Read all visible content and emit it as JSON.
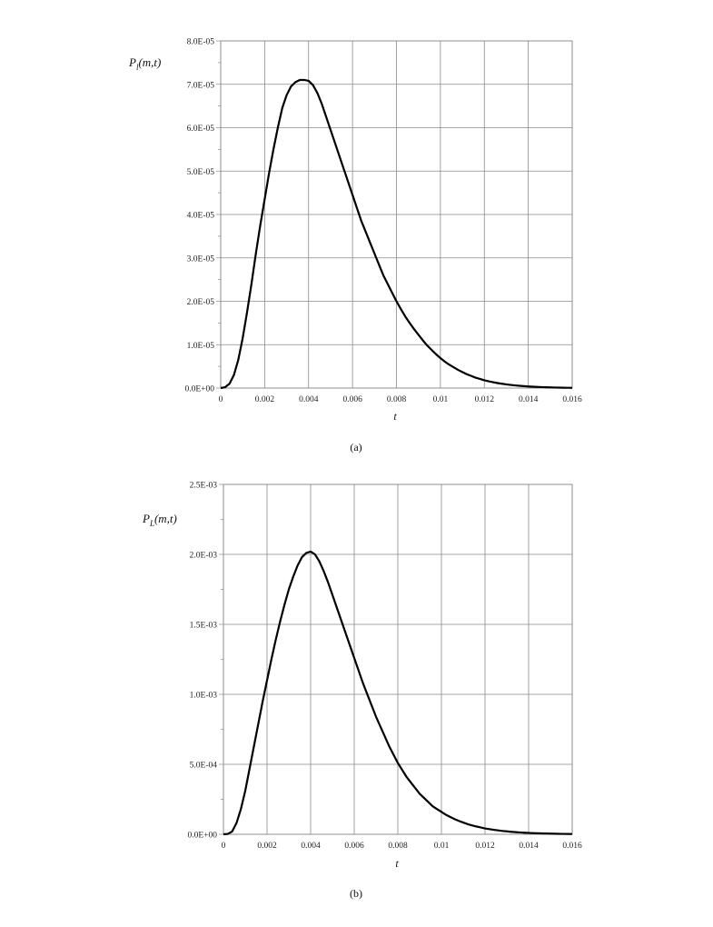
{
  "chart_data": [
    {
      "type": "line",
      "panel_label": "(a)",
      "ylabel_main": "P",
      "ylabel_sub": "l",
      "ylabel_args": "(m,t)",
      "xlabel": "t",
      "xlim": [
        0,
        0.016
      ],
      "ylim": [
        0,
        8e-05
      ],
      "grid": true,
      "x_ticks": [
        "0",
        "0.002",
        "0.004",
        "0.006",
        "0.008",
        "0.01",
        "0.012",
        "0.014",
        "0.016"
      ],
      "y_ticks": [
        "0.0E+00",
        "1.0E-05",
        "2.0E-05",
        "3.0E-05",
        "4.0E-05",
        "5.0E-05",
        "6.0E-05",
        "7.0E-05",
        "8.0E-05"
      ],
      "series": [
        {
          "x": [
            0,
            0.0002,
            0.0004,
            0.0006,
            0.0008,
            0.001,
            0.0012,
            0.0014,
            0.0016,
            0.0018,
            0.002,
            0.0022,
            0.0024,
            0.0026,
            0.0028,
            0.003,
            0.0032,
            0.0034,
            0.0036,
            0.0038,
            0.004,
            0.0042,
            0.0044,
            0.0046,
            0.0048,
            0.005,
            0.0052,
            0.0054,
            0.0056,
            0.0058,
            0.006,
            0.0062,
            0.0064,
            0.0066,
            0.0068,
            0.007,
            0.0072,
            0.0074,
            0.0076,
            0.0078,
            0.008,
            0.0082,
            0.0084,
            0.0086,
            0.0088,
            0.009,
            0.0092,
            0.0094,
            0.0096,
            0.0098,
            0.01,
            0.0102,
            0.0104,
            0.0106,
            0.0108,
            0.011,
            0.0112,
            0.0114,
            0.0116,
            0.0118,
            0.012,
            0.0122,
            0.0124,
            0.0126,
            0.0128,
            0.013,
            0.0132,
            0.0134,
            0.0136,
            0.0138,
            0.014,
            0.0142,
            0.0144,
            0.0146,
            0.0148,
            0.015,
            0.0152,
            0.0154,
            0.0156,
            0.0158,
            0.016
          ],
          "y": [
            0,
            2e-07,
            1e-06,
            3e-06,
            6.5e-06,
            1.15e-05,
            1.75e-05,
            2.4e-05,
            3.1e-05,
            3.75e-05,
            4.35e-05,
            4.95e-05,
            5.5e-05,
            6e-05,
            6.45e-05,
            6.75e-05,
            6.95e-05,
            7.05e-05,
            7.1e-05,
            7.1e-05,
            7.08e-05,
            6.98e-05,
            6.8e-05,
            6.55e-05,
            6.25e-05,
            5.95e-05,
            5.65e-05,
            5.35e-05,
            5.05e-05,
            4.75e-05,
            4.45e-05,
            4.15e-05,
            3.85e-05,
            3.6e-05,
            3.35e-05,
            3.1e-05,
            2.85e-05,
            2.6e-05,
            2.4e-05,
            2.2e-05,
            2e-05,
            1.82e-05,
            1.65e-05,
            1.5e-05,
            1.36e-05,
            1.23e-05,
            1.1e-05,
            9.8e-06,
            8.8e-06,
            7.8e-06,
            6.9e-06,
            6.1e-06,
            5.4e-06,
            4.8e-06,
            4.2e-06,
            3.7e-06,
            3.2e-06,
            2.8e-06,
            2.4e-06,
            2.1e-06,
            1.8e-06,
            1.55e-06,
            1.35e-06,
            1.15e-06,
            1e-06,
            8.5e-07,
            7.2e-07,
            6.1e-07,
            5.2e-07,
            4.4e-07,
            3.7e-07,
            3.1e-07,
            2.6e-07,
            2.2e-07,
            1.8e-07,
            1.5e-07,
            1.2e-07,
            1e-07,
            8e-08,
            6e-08,
            5e-08
          ]
        }
      ]
    },
    {
      "type": "line",
      "panel_label": "(b)",
      "ylabel_main": "P",
      "ylabel_sub": "L",
      "ylabel_args": "(m,t)",
      "xlabel": "t",
      "xlim": [
        0,
        0.016
      ],
      "ylim": [
        0,
        0.0025
      ],
      "grid": true,
      "x_ticks": [
        "0",
        "0.002",
        "0.004",
        "0.006",
        "0.008",
        "0.01",
        "0.012",
        "0.014",
        "0.016"
      ],
      "y_ticks": [
        "0.0E+00",
        "5.0E-04",
        "1.0E-03",
        "1.5E-03",
        "2.0E-03",
        "2.5E-03"
      ],
      "series": [
        {
          "x": [
            0,
            0.0002,
            0.0004,
            0.0006,
            0.0008,
            0.001,
            0.0012,
            0.0014,
            0.0016,
            0.0018,
            0.002,
            0.0022,
            0.0024,
            0.0026,
            0.0028,
            0.003,
            0.0032,
            0.0034,
            0.0036,
            0.0038,
            0.004,
            0.0042,
            0.0044,
            0.0046,
            0.0048,
            0.005,
            0.0052,
            0.0054,
            0.0056,
            0.0058,
            0.006,
            0.0062,
            0.0064,
            0.0066,
            0.0068,
            0.007,
            0.0072,
            0.0074,
            0.0076,
            0.0078,
            0.008,
            0.0082,
            0.0084,
            0.0086,
            0.0088,
            0.009,
            0.0092,
            0.0094,
            0.0096,
            0.0098,
            0.01,
            0.0102,
            0.0104,
            0.0106,
            0.0108,
            0.011,
            0.0112,
            0.0114,
            0.0116,
            0.0118,
            0.012,
            0.0122,
            0.0124,
            0.0126,
            0.0128,
            0.013,
            0.0132,
            0.0134,
            0.0136,
            0.0138,
            0.014,
            0.0142,
            0.0144,
            0.0146,
            0.0148,
            0.015,
            0.0152,
            0.0154,
            0.0156,
            0.0158,
            0.016
          ],
          "y": [
            0,
            3e-06,
            2e-05,
            8e-05,
            0.00018,
            0.00031,
            0.00047,
            0.00063,
            0.00079,
            0.00095,
            0.0011,
            0.00125,
            0.00139,
            0.00152,
            0.00164,
            0.00175,
            0.00184,
            0.00192,
            0.00198,
            0.00201,
            0.00202,
            0.002,
            0.00195,
            0.00188,
            0.0018,
            0.00171,
            0.00162,
            0.00153,
            0.00144,
            0.00135,
            0.00126,
            0.00117,
            0.00108,
            0.001,
            0.00092,
            0.00084,
            0.00077,
            0.0007,
            0.00063,
            0.00057,
            0.00051,
            0.00046,
            0.00041,
            0.00037,
            0.00033,
            0.00029,
            0.00026,
            0.00023,
            0.0002,
            0.00018,
            0.00016,
            0.00014,
            0.000124,
            0.000109,
            9.6e-05,
            8.4e-05,
            7.3e-05,
            6.4e-05,
            5.6e-05,
            4.9e-05,
            4.2e-05,
            3.7e-05,
            3.2e-05,
            2.8e-05,
            2.4e-05,
            2.1e-05,
            1.8e-05,
            1.55e-05,
            1.35e-05,
            1.15e-05,
            1e-05,
            8.6e-06,
            7.4e-06,
            6.4e-06,
            5.5e-06,
            4.7e-06,
            4e-06,
            3.4e-06,
            2.9e-06,
            2.5e-06,
            2.1e-06
          ]
        }
      ]
    }
  ]
}
